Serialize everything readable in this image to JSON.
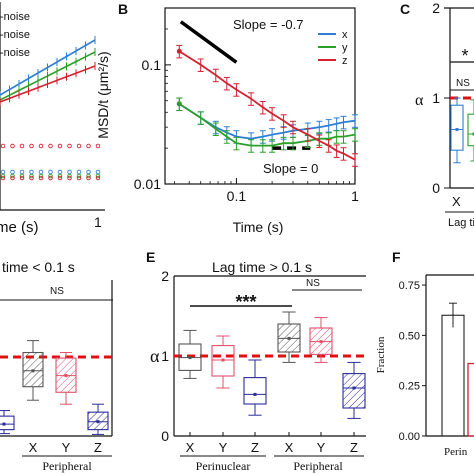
{
  "colors": {
    "x": "#2f7fd4",
    "y": "#2aa02a",
    "z": "#d4202f",
    "threshold": "#e01010",
    "black": "#111111",
    "navy": "#2a2a9a",
    "pink": "#e0506a",
    "grey": "#666666"
  },
  "panels": {
    "A": {
      "legend_entries": [
        "-noise",
        "-noise",
        "-noise"
      ],
      "xlabel_fragment": "me (s)",
      "tick_last": "1"
    },
    "B": {
      "label": "B",
      "ylabel": "MSD/t (μm²/s)",
      "xlabel": "Time (s)",
      "yticks": [
        "0.01",
        "0.1"
      ],
      "xticks": [
        "0.1",
        "1"
      ],
      "annotations": [
        "Slope = -0.7",
        "Slope = 0"
      ],
      "legend": [
        "x",
        "y",
        "z"
      ]
    },
    "C": {
      "label": "C",
      "ylabel": "α",
      "yticks": [
        "0",
        "1",
        "2"
      ],
      "sig": "*",
      "ns": "NS",
      "xtick": "X",
      "xlabel_fragment": "Lag tim"
    },
    "D": {
      "title_fragment": "time < 0.1 s",
      "ns": "NS",
      "xticks": [
        "X",
        "Y",
        "Z"
      ],
      "group_label": "Peripheral"
    },
    "E": {
      "label": "E",
      "title": "Lag time > 0.1 s",
      "ylabel": "α",
      "yticks": [
        "0",
        "1",
        "2"
      ],
      "sig": "***",
      "ns": "NS",
      "xticks": [
        "X",
        "Y",
        "Z",
        "X",
        "Y",
        "Z"
      ],
      "groups": [
        "Perinuclear",
        "Peripheral"
      ]
    },
    "F": {
      "label": "F",
      "ylabel": "Fraction",
      "yticks": [
        "0.00",
        "0.25",
        "0.50",
        "0.75"
      ],
      "xlabel_fragment": "Perin"
    }
  },
  "chart_data": [
    {
      "panel": "B",
      "type": "line",
      "title": "",
      "xlabel": "Time (s)",
      "ylabel": "MSD/t (μm²/s)",
      "xscale": "log",
      "yscale": "log",
      "xlim": [
        0.025,
        1.0
      ],
      "ylim": [
        0.01,
        0.3
      ],
      "x": [
        0.033,
        0.05,
        0.067,
        0.083,
        0.1,
        0.133,
        0.167,
        0.2,
        0.25,
        0.3,
        0.4,
        0.5,
        0.6,
        0.7,
        0.8,
        1.0
      ],
      "series": [
        {
          "name": "x",
          "values": [
            0.047,
            0.036,
            0.03,
            0.027,
            0.025,
            0.024,
            0.025,
            0.026,
            0.027,
            0.028,
            0.029,
            0.03,
            0.031,
            0.032,
            0.033,
            0.034
          ]
        },
        {
          "name": "y",
          "values": [
            0.047,
            0.036,
            0.029,
            0.025,
            0.022,
            0.021,
            0.021,
            0.021,
            0.022,
            0.022,
            0.023,
            0.024,
            0.024,
            0.025,
            0.025,
            0.026
          ]
        },
        {
          "name": "z",
          "values": [
            0.13,
            0.1,
            0.082,
            0.07,
            0.062,
            0.052,
            0.044,
            0.039,
            0.034,
            0.03,
            0.026,
            0.023,
            0.021,
            0.019,
            0.018,
            0.016
          ]
        }
      ],
      "reference_lines": [
        {
          "label": "Slope = -0.7",
          "x": [
            0.034,
            0.1
          ],
          "y": [
            0.23,
            0.105
          ]
        },
        {
          "label": "Slope = 0",
          "x": [
            0.2,
            0.42
          ],
          "y": [
            0.02,
            0.02
          ]
        }
      ]
    },
    {
      "panel": "C",
      "type": "box",
      "ylabel": "α",
      "ylim": [
        0,
        2
      ],
      "threshold": 1.0,
      "boxes": [
        {
          "category": "X",
          "q1": 0.42,
          "median": 0.65,
          "q3": 0.92,
          "low": 0.28,
          "high": 1.0
        },
        {
          "category": "",
          "q1": 0.47,
          "median": 0.6,
          "q3": 0.82,
          "low": 0.3,
          "high": 0.98
        }
      ]
    },
    {
      "panel": "E",
      "type": "box",
      "title": "Lag time > 0.1 s",
      "ylabel": "α",
      "ylim": [
        0,
        2
      ],
      "threshold": 1.0,
      "categories": [
        "X",
        "Y",
        "Z",
        "X",
        "Y",
        "Z"
      ],
      "boxes": [
        {
          "category": "X",
          "group": "Perinuclear",
          "q1": 0.82,
          "median": 0.98,
          "q3": 1.15,
          "mean": 0.98,
          "low": 0.72,
          "high": 1.32
        },
        {
          "category": "Y",
          "group": "Perinuclear",
          "q1": 0.75,
          "median": 0.95,
          "q3": 1.13,
          "mean": 0.95,
          "low": 0.6,
          "high": 1.25
        },
        {
          "category": "Z",
          "group": "Perinuclear",
          "q1": 0.4,
          "median": 0.52,
          "q3": 0.73,
          "mean": 0.52,
          "low": 0.26,
          "high": 0.95
        },
        {
          "category": "X",
          "group": "Peripheral",
          "q1": 1.05,
          "median": 1.22,
          "q3": 1.4,
          "mean": 1.22,
          "low": 0.92,
          "high": 1.55
        },
        {
          "category": "Y",
          "group": "Peripheral",
          "q1": 1.02,
          "median": 1.18,
          "q3": 1.35,
          "mean": 1.18,
          "low": 0.92,
          "high": 1.48
        },
        {
          "category": "Z",
          "group": "Peripheral",
          "q1": 0.35,
          "median": 0.6,
          "q3": 0.78,
          "mean": 0.6,
          "low": 0.22,
          "high": 0.92
        }
      ]
    },
    {
      "panel": "D",
      "type": "box",
      "title": "time < 0.1 s",
      "threshold": 1.0,
      "categories": [
        "X",
        "Y",
        "Z"
      ],
      "boxes": [
        {
          "category": "X",
          "group": "Peripheral",
          "q1": 0.62,
          "median": 0.82,
          "q3": 1.05,
          "low": 0.45,
          "high": 1.2
        },
        {
          "category": "Y",
          "group": "Peripheral",
          "q1": 0.55,
          "median": 0.76,
          "q3": 0.98,
          "low": 0.4,
          "high": 1.05
        },
        {
          "category": "Z",
          "group": "Peripheral",
          "q1": 0.08,
          "median": 0.18,
          "q3": 0.3,
          "low": 0.02,
          "high": 0.4
        }
      ]
    },
    {
      "panel": "F",
      "type": "bar",
      "ylabel": "Fraction",
      "ylim": [
        0,
        0.8
      ],
      "bars": [
        {
          "value": 0.6,
          "error": 0.06,
          "color": "black"
        },
        {
          "value": 0.36,
          "error": 0,
          "color": "red"
        }
      ]
    }
  ]
}
